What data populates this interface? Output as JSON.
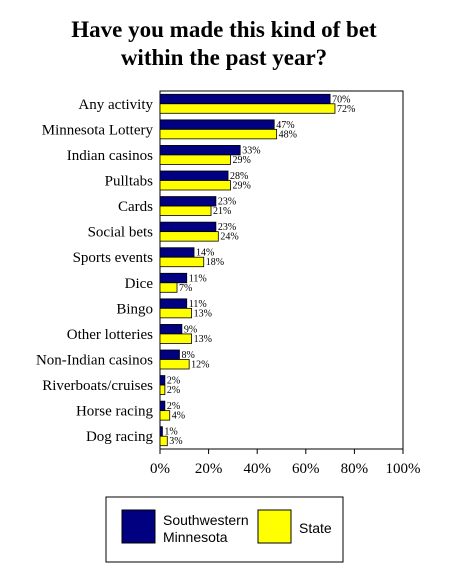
{
  "chart_data": {
    "type": "bar",
    "orientation": "horizontal",
    "title_lines": [
      "Have you made this kind of bet",
      "within the past year?"
    ],
    "categories": [
      "Any activity",
      "Minnesota Lottery",
      "Indian casinos",
      "Pulltabs",
      "Cards",
      "Social bets",
      "Sports events",
      "Dice",
      "Bingo",
      "Other lotteries",
      "Non-Indian casinos",
      "Riverboats/cruises",
      "Horse racing",
      "Dog racing"
    ],
    "series": [
      {
        "name": "Southwestern Minnesota",
        "color": "#000080",
        "values": [
          70,
          47,
          33,
          28,
          23,
          23,
          14,
          11,
          11,
          9,
          8,
          2,
          2,
          1
        ]
      },
      {
        "name": "State",
        "color": "#ffff00",
        "values": [
          72,
          48,
          29,
          29,
          21,
          24,
          18,
          7,
          13,
          13,
          12,
          2,
          4,
          3
        ]
      }
    ],
    "legend_lines": [
      [
        "Southwestern",
        "Minnesota"
      ],
      [
        "State"
      ]
    ],
    "xlim": [
      0,
      100
    ],
    "xticks": [
      0,
      20,
      40,
      60,
      80,
      100
    ],
    "tick_suffix": "%",
    "value_suffix": "%",
    "grid": false,
    "legend_position": "bottom"
  }
}
